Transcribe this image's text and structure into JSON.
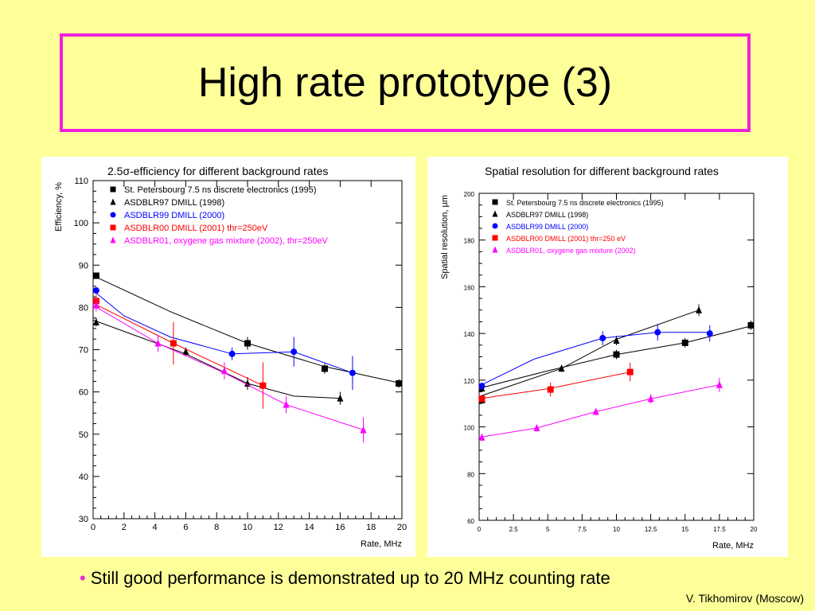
{
  "slide": {
    "title": "High rate prototype (3)",
    "bullet": "Still good performance is demonstrated up to 20 MHz counting rate",
    "credit": "V. Tikhomirov (Moscow)"
  },
  "colors": {
    "background": "#ffff99",
    "title_border": "#ee22dd",
    "bullet_dot": "#ee22dd"
  },
  "chart_data": [
    {
      "type": "scatter",
      "title": "2.5σ-efficiency for different background rates",
      "xlabel": "Rate, MHz",
      "ylabel": "Efficiency, %",
      "xlim": [
        0,
        20
      ],
      "ylim": [
        30,
        110
      ],
      "xticks": [
        0,
        2,
        4,
        6,
        8,
        10,
        12,
        14,
        16,
        18,
        20
      ],
      "xtick_labels": [
        "0",
        "2",
        "4",
        "6",
        "8",
        "10",
        "12",
        "14",
        "16",
        "18",
        "20"
      ],
      "yticks": [
        30,
        40,
        50,
        60,
        70,
        80,
        90,
        100,
        110
      ],
      "ytick_labels": [
        "30",
        "40",
        "50",
        "60",
        "70",
        "80",
        "90",
        "100",
        "110"
      ],
      "legend_position": "top-left",
      "series": [
        {
          "name": "St. Petersbourg 7.5 ns discrete electronics (1995)",
          "marker": "square",
          "color": "#000000",
          "x": [
            0.2,
            10.0,
            15.0,
            19.8
          ],
          "y": [
            87.5,
            71.5,
            65.5,
            62.0
          ],
          "yerr": [
            0.5,
            1.5,
            1.2,
            1.0
          ],
          "fit_x": [
            0,
            5,
            10,
            15,
            20
          ],
          "fit_y": [
            87.5,
            79,
            71.5,
            66,
            62
          ]
        },
        {
          "name": "ASDBLR97 DMILL (1998)",
          "marker": "triangle",
          "color": "#000000",
          "x": [
            0.2,
            6.0,
            10.0,
            16.0
          ],
          "y": [
            76.5,
            69.5,
            62.0,
            58.5
          ],
          "yerr": [
            1.0,
            1.0,
            1.5,
            1.5
          ],
          "fit_x": [
            0,
            3,
            6,
            10,
            13,
            16
          ],
          "fit_y": [
            77,
            73,
            69,
            62,
            59,
            58.5
          ]
        },
        {
          "name": "ASDBLR99 DMILL (2000)",
          "marker": "circle",
          "color": "#0000ff",
          "x": [
            0.2,
            9.0,
            13.0,
            16.8
          ],
          "y": [
            84.0,
            69.0,
            69.5,
            64.5
          ],
          "yerr": [
            0.8,
            1.5,
            3.5,
            4.0
          ],
          "fit_x": [
            0,
            2,
            5,
            9,
            13,
            16.8
          ],
          "fit_y": [
            84,
            78,
            73,
            69,
            69.5,
            64.5
          ]
        },
        {
          "name": "ASDBLR00 DMILL (2001) thr=250eV",
          "marker": "square",
          "color": "#ff0000",
          "x": [
            0.2,
            5.2,
            11.0
          ],
          "y": [
            81.5,
            71.5,
            61.5
          ],
          "yerr": [
            1.5,
            5.0,
            5.5
          ],
          "fit_x": [
            0,
            5.2,
            11
          ],
          "fit_y": [
            81,
            71.5,
            61.5
          ]
        },
        {
          "name": "ASDBLR01, oxygene gas mixture (2002), thr=250eV",
          "marker": "triangle",
          "color": "#ff00ff",
          "x": [
            0.2,
            4.2,
            8.5,
            12.5,
            17.5
          ],
          "y": [
            80.5,
            71.5,
            65.0,
            57.0,
            51.0
          ],
          "yerr": [
            1.5,
            2.0,
            2.0,
            2.0,
            3.0
          ],
          "fit_x": [
            0,
            4.2,
            8.5,
            12.5,
            17.5
          ],
          "fit_y": [
            80.5,
            71.5,
            64.5,
            57,
            51
          ]
        }
      ]
    },
    {
      "type": "scatter",
      "title": "Spatial resolution for different background rates",
      "xlabel": "Rate, MHz",
      "ylabel": "Spatial resolution, µm",
      "xlim": [
        0,
        20
      ],
      "ylim": [
        60,
        200
      ],
      "xticks": [
        0,
        2.5,
        5,
        7.5,
        10,
        12.5,
        15,
        17.5,
        20
      ],
      "xtick_labels": [
        "0",
        "2.5",
        "5",
        "7.5",
        "10",
        "12.5",
        "15",
        "17.5",
        "20"
      ],
      "yticks": [
        60,
        80,
        100,
        120,
        140,
        160,
        180,
        200
      ],
      "ytick_labels": [
        "60",
        "80",
        "100",
        "120",
        "140",
        "160",
        "180",
        "200"
      ],
      "legend_position": "top-left",
      "series": [
        {
          "name": "St. Petersbourg 7.5 ns discrete electronics (1995)",
          "marker": "square",
          "color": "#000000",
          "x": [
            0.2,
            10.0,
            15.0,
            19.8
          ],
          "y": [
            111.5,
            131.0,
            136.0,
            143.5
          ],
          "yerr": [
            1.5,
            2.0,
            2.0,
            2.0
          ],
          "fit_x": [
            0,
            5,
            10,
            15,
            20
          ],
          "fit_y": [
            116.5,
            124,
            131,
            136,
            143.5
          ]
        },
        {
          "name": "ASDBLR97 DMILL (1998)",
          "marker": "triangle",
          "color": "#000000",
          "x": [
            0.2,
            6.0,
            10.0,
            16.0
          ],
          "y": [
            116.5,
            125.0,
            137.0,
            150.0
          ],
          "yerr": [
            1.5,
            1.5,
            2.0,
            2.5
          ],
          "fit_x": [
            0,
            6,
            10,
            16
          ],
          "fit_y": [
            113,
            125,
            137.5,
            150
          ]
        },
        {
          "name": "ASDBLR99 DMILL (2000)",
          "marker": "circle",
          "color": "#0000ff",
          "x": [
            0.2,
            9.0,
            13.0,
            16.8
          ],
          "y": [
            117.5,
            138.0,
            140.5,
            140.0
          ],
          "yerr": [
            1.5,
            3.0,
            3.5,
            3.5
          ],
          "fit_x": [
            0,
            4,
            9,
            13,
            16.8
          ],
          "fit_y": [
            117.5,
            129,
            138,
            140.5,
            140.5
          ]
        },
        {
          "name": "ASDBLR00 DMILL (2001) thr=250 eV",
          "marker": "square",
          "color": "#ff0000",
          "x": [
            0.2,
            5.2,
            11.0
          ],
          "y": [
            112.0,
            116.0,
            123.5
          ],
          "yerr": [
            1.5,
            3.0,
            4.0
          ],
          "fit_x": [
            0,
            5.2,
            11
          ],
          "fit_y": [
            112,
            116.5,
            123.5
          ]
        },
        {
          "name": "ASDBLR01, oxygene gas mixture (2002)",
          "marker": "triangle",
          "color": "#ff00ff",
          "x": [
            0.2,
            4.2,
            8.5,
            12.5,
            17.5
          ],
          "y": [
            95.5,
            99.5,
            106.5,
            112.0,
            118.0
          ],
          "yerr": [
            1.5,
            1.5,
            1.5,
            2.0,
            3.0
          ],
          "fit_x": [
            0,
            4.2,
            8.5,
            12.5,
            17.5
          ],
          "fit_y": [
            95.5,
            99.5,
            106.5,
            112,
            118
          ]
        }
      ]
    }
  ]
}
